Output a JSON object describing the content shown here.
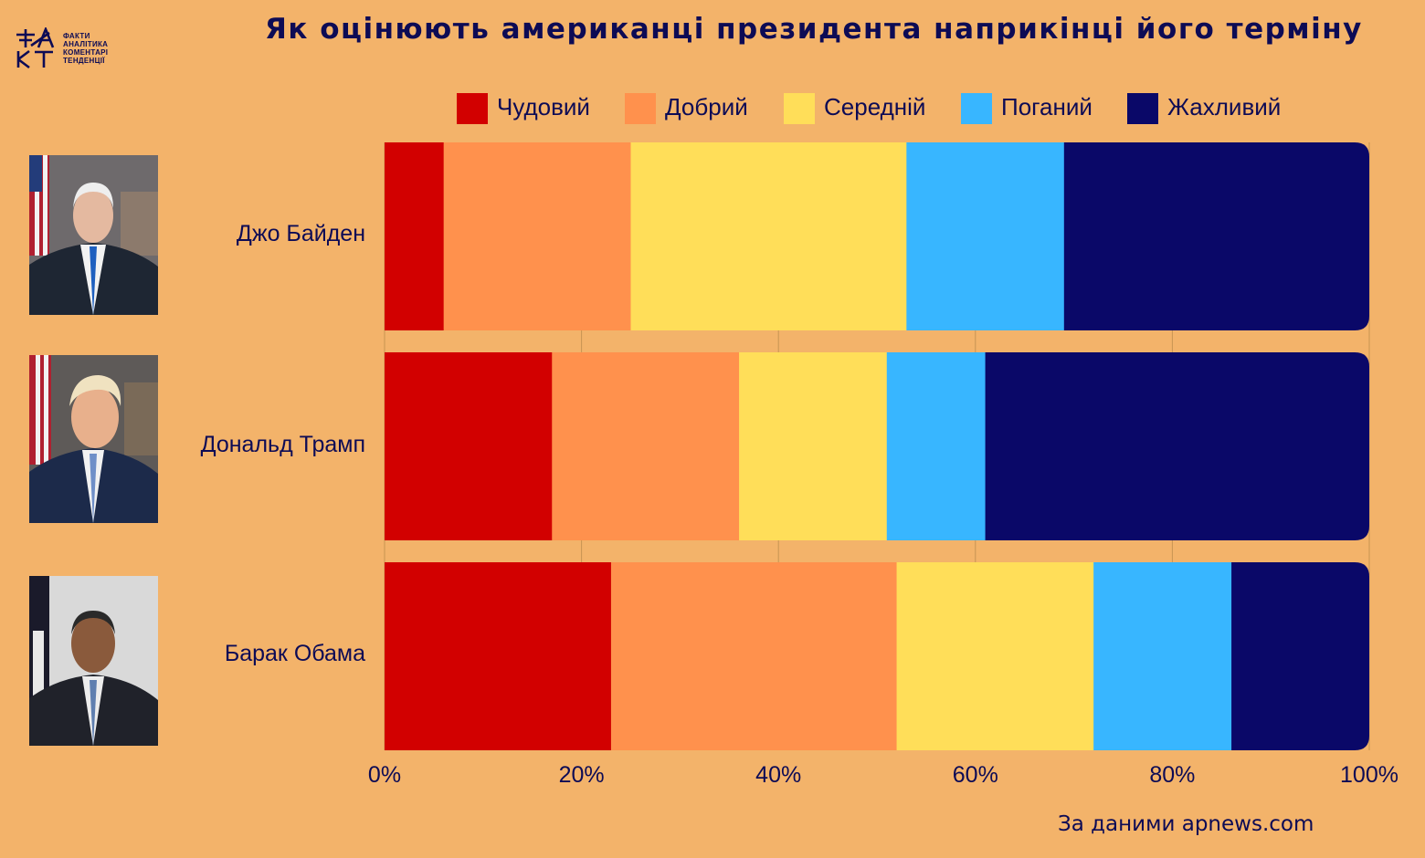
{
  "title": "Як оцінюють американці президента наприкінці його терміну",
  "logo": {
    "mark": "ФАКТ",
    "lines": [
      "ФАКТИ",
      "АНАЛІТИКА",
      "КОМЕНТАРІ",
      "ТЕНДЕНЦІЇ"
    ]
  },
  "source": "За даними apnews.com",
  "colors": {
    "background": "#F3B36A",
    "text": "#0D0B55",
    "gridline": "#C79453"
  },
  "chart_data": {
    "type": "bar",
    "orientation": "horizontal",
    "stacked": true,
    "categories": [
      "Джо Байден",
      "Дональд Трамп",
      "Барак Обама"
    ],
    "series": [
      {
        "name": "Чудовий",
        "color": "#D20000",
        "values": [
          6,
          17,
          23
        ]
      },
      {
        "name": "Добрий",
        "color": "#FF914D",
        "values": [
          19,
          19,
          29
        ]
      },
      {
        "name": "Середній",
        "color": "#FFDE59",
        "values": [
          28,
          15,
          20
        ]
      },
      {
        "name": "Поганий",
        "color": "#38B6FF",
        "values": [
          16,
          10,
          14
        ]
      },
      {
        "name": "Жахливий",
        "color": "#0A0868",
        "values": [
          31,
          39,
          14
        ]
      }
    ],
    "xlim": [
      0,
      100
    ],
    "xticks": [
      "0%",
      "20%",
      "40%",
      "60%",
      "80%",
      "100%"
    ],
    "grid": true,
    "legend": "top"
  }
}
